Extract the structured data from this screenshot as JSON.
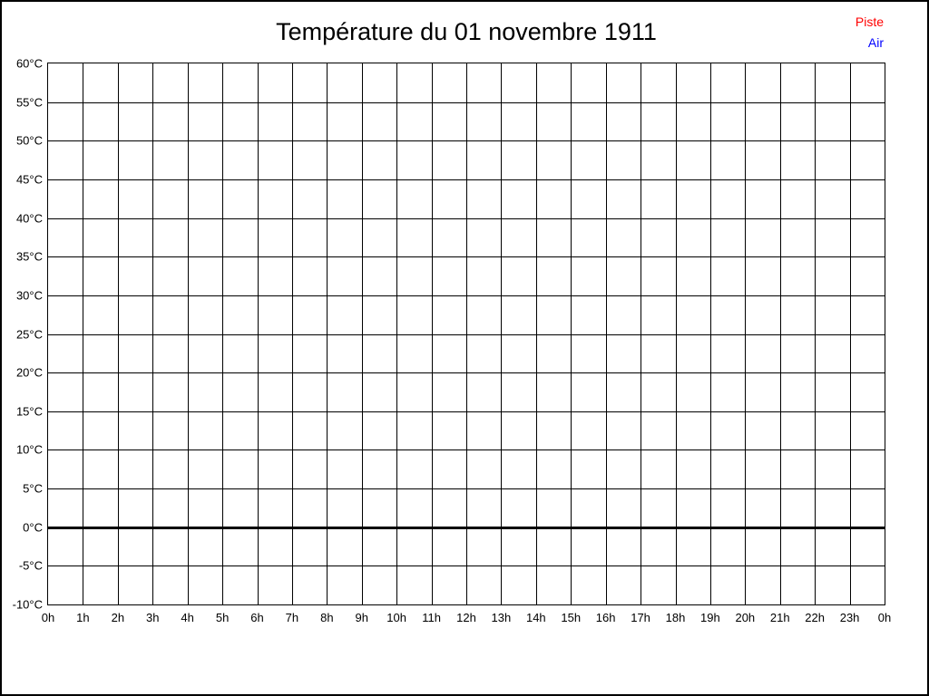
{
  "title": "Température du 01 novembre 1911",
  "legend": {
    "items": [
      {
        "label": "Piste",
        "color": "#ff0000"
      },
      {
        "label": "Air",
        "color": "#0000ff"
      }
    ]
  },
  "chart_data": {
    "type": "line",
    "title": "Température du 01 novembre 1911",
    "xlabel": "",
    "ylabel": "",
    "x_tick_labels": [
      "0h",
      "1h",
      "2h",
      "3h",
      "4h",
      "5h",
      "6h",
      "7h",
      "8h",
      "9h",
      "10h",
      "11h",
      "12h",
      "13h",
      "14h",
      "15h",
      "16h",
      "17h",
      "18h",
      "19h",
      "20h",
      "21h",
      "22h",
      "23h",
      "0h"
    ],
    "y_tick_labels": [
      "60°C",
      "55°C",
      "50°C",
      "45°C",
      "40°C",
      "35°C",
      "30°C",
      "25°C",
      "20°C",
      "15°C",
      "10°C",
      "5°C",
      "0°C",
      "-5°C",
      "-10°C"
    ],
    "ylim": [
      -10,
      60
    ],
    "y_tick_step": 5,
    "xlim_hours": [
      0,
      24
    ],
    "grid": true,
    "grid_color": "#000000",
    "zero_line": {
      "value": 0,
      "thickness_px": 3
    },
    "legend_position": "top-right",
    "series": [
      {
        "name": "Piste",
        "color": "#ff0000",
        "values": []
      },
      {
        "name": "Air",
        "color": "#0000ff",
        "values": []
      }
    ]
  }
}
